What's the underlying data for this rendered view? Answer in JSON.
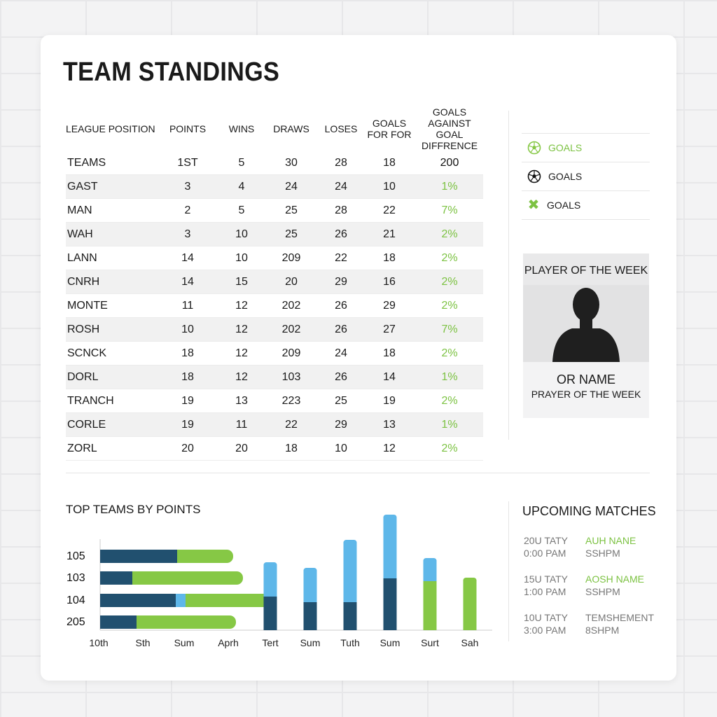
{
  "title": "TEAM STANDINGS",
  "standings": {
    "headers": [
      {
        "l1": "LEAGUE POSITION",
        "l2": ""
      },
      {
        "l1": "POINTS",
        "l2": ""
      },
      {
        "l1": "WINS",
        "l2": ""
      },
      {
        "l1": "DRAWS",
        "l2": ""
      },
      {
        "l1": "LOSES",
        "l2": ""
      },
      {
        "l1": "GOALS",
        "l2": "FOR FOR"
      },
      {
        "l1": "GOALS AGAINST",
        "l2": "GOAL DIFFRENCE"
      }
    ],
    "rows": [
      [
        "TEAMS",
        "1ST",
        "5",
        "30",
        "28",
        "18",
        "200"
      ],
      [
        "GAST",
        "3",
        "4",
        "24",
        "24",
        "10",
        "1%"
      ],
      [
        "MAN",
        "2",
        "5",
        "25",
        "28",
        "22",
        "7%"
      ],
      [
        "WAH",
        "3",
        "10",
        "25",
        "26",
        "21",
        "2%"
      ],
      [
        "LANN",
        "14",
        "10",
        "209",
        "22",
        "18",
        "2%"
      ],
      [
        "CNRH",
        "14",
        "15",
        "20",
        "29",
        "16",
        "2%"
      ],
      [
        "MONTE",
        "11",
        "12",
        "202",
        "26",
        "29",
        "2%"
      ],
      [
        "ROSH",
        "10",
        "12",
        "202",
        "26",
        "27",
        "7%"
      ],
      [
        "SCNCK",
        "18",
        "12",
        "209",
        "24",
        "18",
        "2%"
      ],
      [
        "DORL",
        "18",
        "12",
        "103",
        "26",
        "14",
        "1%"
      ],
      [
        "TRANCH",
        "19",
        "13",
        "223",
        "25",
        "19",
        "2%"
      ],
      [
        "CORLE",
        "19",
        "11",
        "22",
        "29",
        "13",
        "1%"
      ],
      [
        "ZORL",
        "20",
        "20",
        "18",
        "10",
        "12",
        "2%"
      ]
    ]
  },
  "goal_legend": [
    {
      "label": "GOALS",
      "icon": "soccer-ball-green-icon",
      "green": true
    },
    {
      "label": "GOALS",
      "icon": "soccer-ball-icon",
      "green": false
    },
    {
      "label": "GOALS",
      "icon": "cross-icon",
      "green": false
    }
  ],
  "player_of_week": {
    "title": "PLAYER OF THE WEEK",
    "name": "OR NAME",
    "subtitle": "PRAYER OF THE WEEK"
  },
  "upcoming": {
    "title": "UPCOMING MATCHES",
    "matches": [
      {
        "date": "20U TATY",
        "time": "0:00 PAM",
        "name": "AUH NANE",
        "sub": "SSHPM",
        "green": true
      },
      {
        "date": "15U TATY",
        "time": "1:00 PAM",
        "name": "AOSH NAME",
        "sub": "SSHPM",
        "green": true
      },
      {
        "date": "10U TATY",
        "time": "3:00 PAM",
        "name": "TEMSHEMENT",
        "sub": "8SHPM",
        "green": false
      }
    ]
  },
  "colors": {
    "dark_blue": "#21506f",
    "light_blue": "#5eb7e9",
    "green": "#86c845"
  },
  "chart_data": {
    "type": "bar",
    "title": "TOP TEAMS BY POINTS",
    "horizontal": {
      "categories": [
        "105",
        "103",
        "104",
        "205"
      ],
      "series": [
        {
          "color": "dark_blue",
          "values": [
            110,
            46,
            108,
            52
          ]
        },
        {
          "color": "light_blue",
          "values": [
            0,
            0,
            14,
            0
          ]
        },
        {
          "color": "green",
          "values": [
            80,
            158,
            130,
            142
          ]
        }
      ],
      "x_ticks": [
        "10th",
        "Sth",
        "Sum",
        "Aprh"
      ]
    },
    "vertical": {
      "categories": [
        "Tert",
        "Sum",
        "Tuth",
        "Sum",
        "Surt",
        "Sah"
      ],
      "bars": [
        {
          "dark_blue": 48,
          "light_blue": 46,
          "green": 0
        },
        {
          "dark_blue": 40,
          "light_blue": 46,
          "green": 0
        },
        {
          "dark_blue": 40,
          "light_blue": 86,
          "green": 0
        },
        {
          "dark_blue": 74,
          "light_blue": 88,
          "green": 0
        },
        {
          "dark_blue": 0,
          "light_blue": 30,
          "green": 70
        },
        {
          "dark_blue": 0,
          "light_blue": 0,
          "green": 72
        }
      ]
    }
  }
}
